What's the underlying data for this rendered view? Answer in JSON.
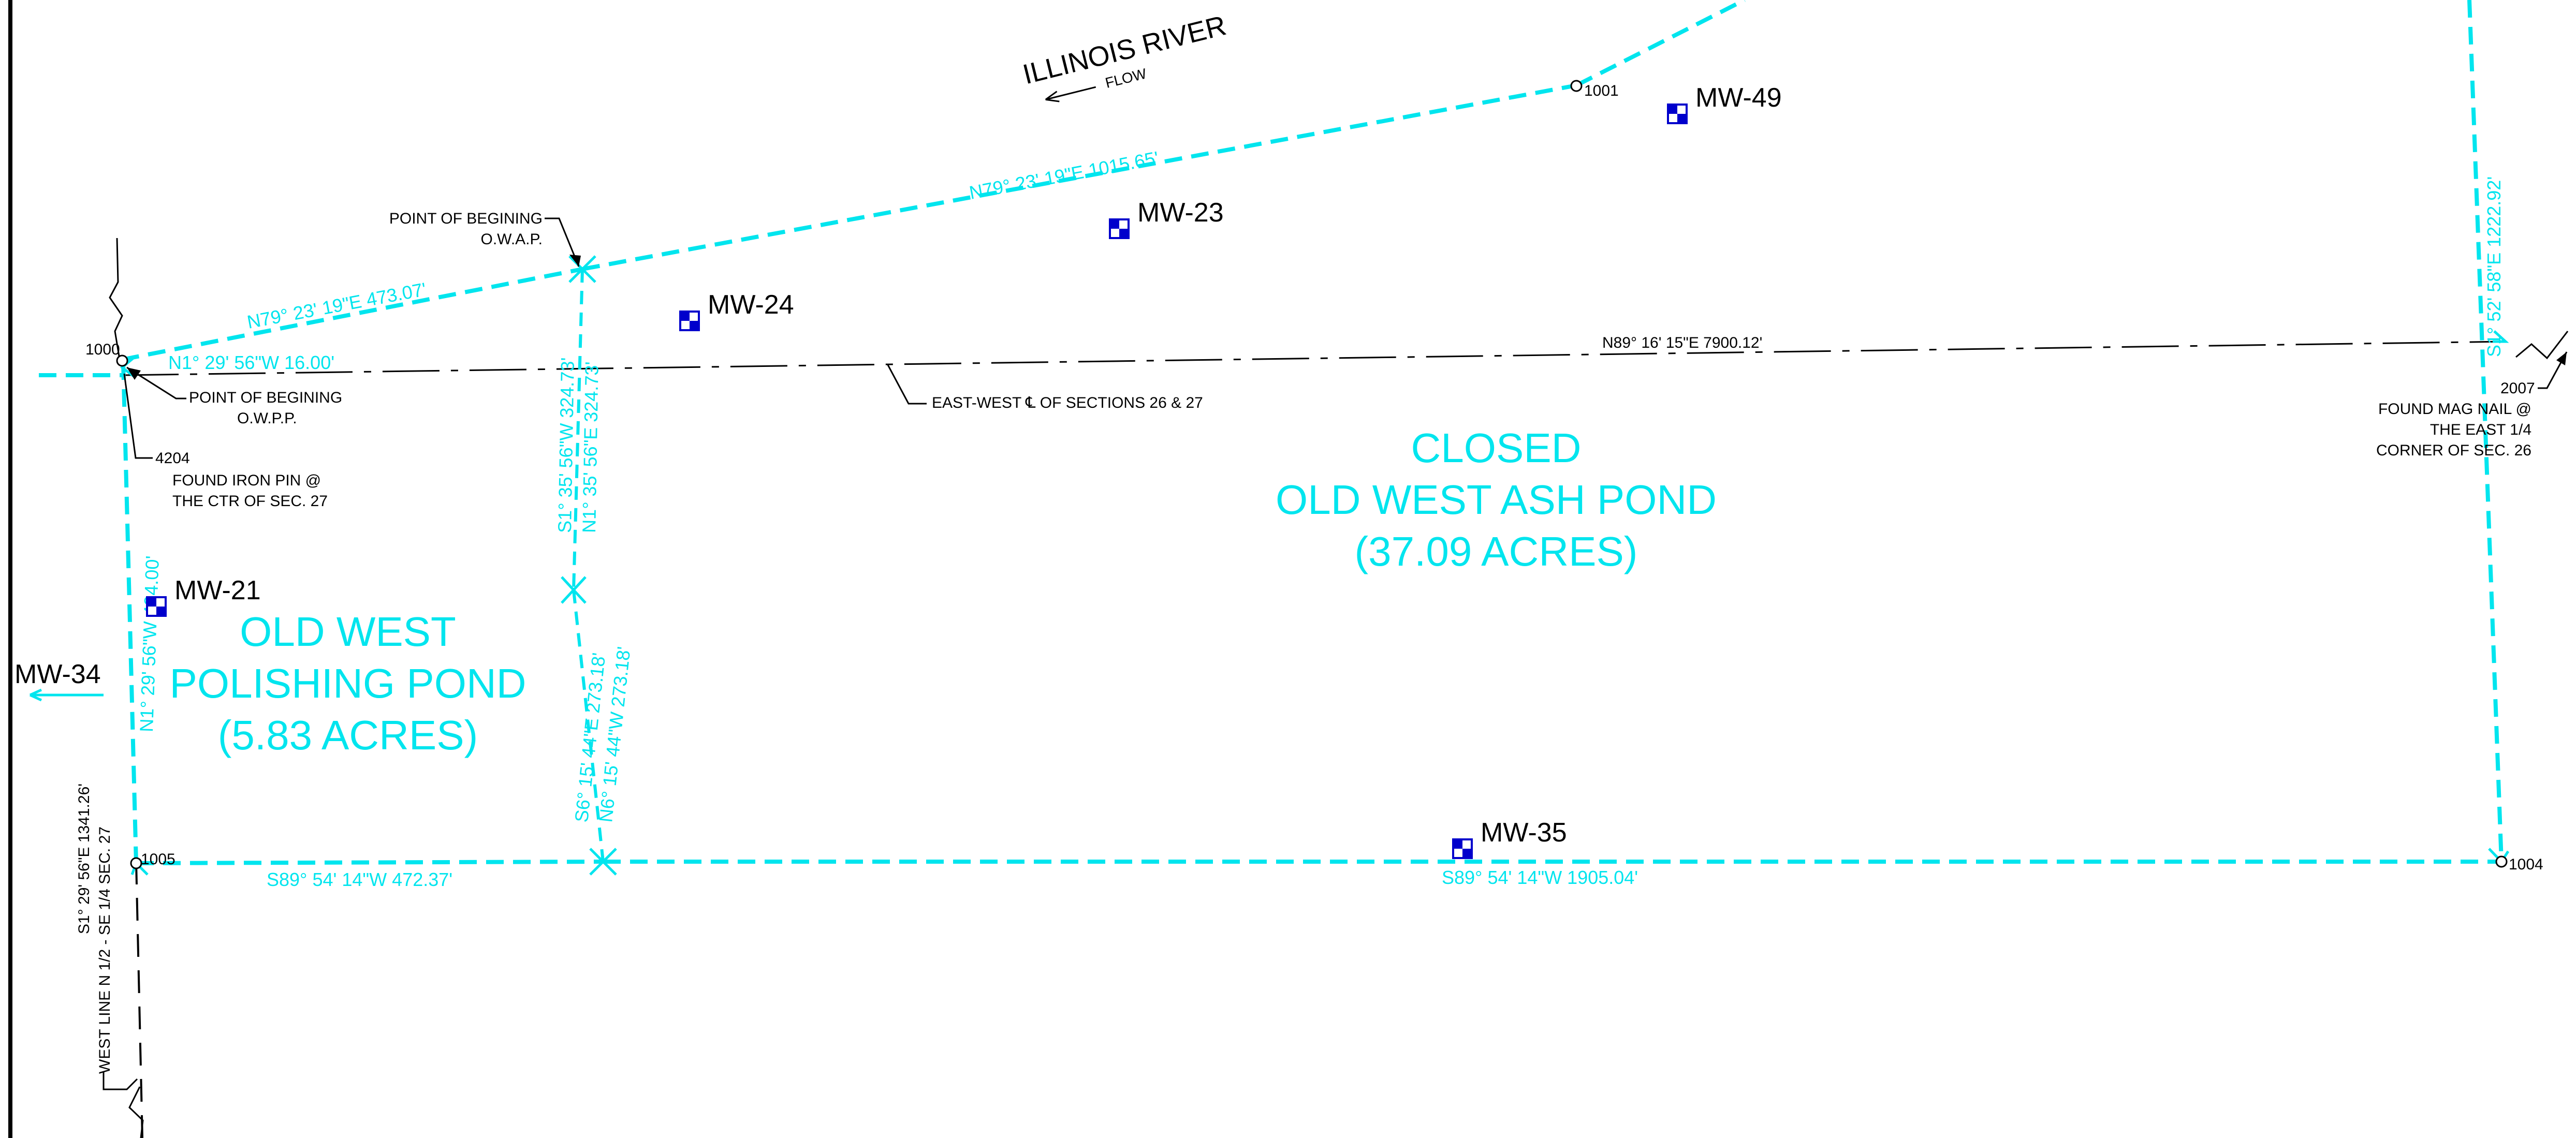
{
  "colors": {
    "boundary": "#00e5ee",
    "linework": "#000000",
    "monitoring_well": "#0000cc",
    "background": "#ffffff"
  },
  "river": {
    "name": "ILLINOIS RIVER",
    "flow_label": "FLOW"
  },
  "ponds": {
    "ash_pond": {
      "line1": "CLOSED",
      "line2": "OLD WEST ASH POND",
      "line3": "(37.09 ACRES)"
    },
    "polishing_pond": {
      "line1": "OLD WEST",
      "line2": "POLISHING POND",
      "line3": "(5.83 ACRES)"
    }
  },
  "bearings": {
    "north_upper": "N79° 23' 19\"E  1015.65'",
    "north_lower": "N79° 23' 19\"E  473.07'",
    "short_west": "N1° 29' 56\"W  16.00'",
    "section_line": "N89° 16' 15\"E  7900.12'",
    "east_side": "S1° 52' 58\"E  1222.92'",
    "divider_upper_a": "S1° 35' 56\"W  324.73'",
    "divider_upper_b": "N1° 35' 56\"E  324.73'",
    "divider_lower_a": "S6° 15' 44\"E  273.18'",
    "divider_lower_b": "N6° 15' 44\"W  273.18'",
    "west_side": "N1° 29' 56\"W  494.00'",
    "south_west": "S89° 54' 14\"W  472.37'",
    "south_east": "S89° 54' 14\"W  1905.04'",
    "west_line": "S1° 29' 56\"E  1341.26'",
    "west_line_note": "WEST LINE N 1/2 - SE 1/4 SEC. 27"
  },
  "points": {
    "p1000": "1000",
    "p1001": "1001",
    "p1004": "1004",
    "p1005": "1005",
    "p2007": "2007",
    "p4204": "4204"
  },
  "annotations": {
    "pob_owap_1": "POINT OF BEGINING",
    "pob_owap_2": "O.W.A.P.",
    "pob_owpp_1": "POINT OF BEGINING",
    "pob_owpp_2": "O.W.P.P.",
    "iron_pin_1": "FOUND IRON PIN @",
    "iron_pin_2": "THE CTR OF SEC. 27",
    "section_centerline": "EAST-WEST ℄ OF SECTIONS 26 & 27",
    "mag_nail_1": "FOUND MAG NAIL @",
    "mag_nail_2": "THE EAST 1/4",
    "mag_nail_3": "CORNER OF SEC. 26"
  },
  "wells": [
    "MW-49",
    "MW-23",
    "MW-24",
    "MW-21",
    "MW-35",
    "MW-34"
  ]
}
